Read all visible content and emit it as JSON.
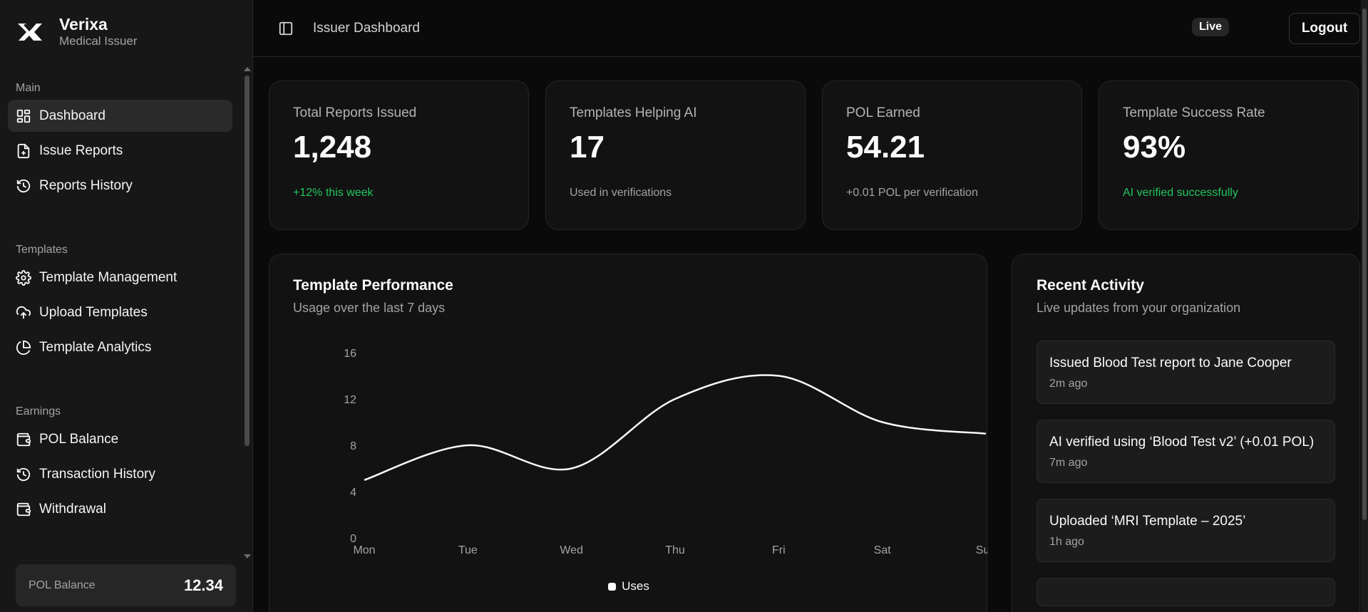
{
  "brand": {
    "name": "Verixa",
    "subtitle": "Medical Issuer"
  },
  "sidebar": {
    "groups": [
      {
        "label": "Main",
        "items": [
          {
            "label": "Dashboard",
            "icon": "layout-grid-icon",
            "active": true
          },
          {
            "label": "Issue Reports",
            "icon": "file-plus-icon"
          },
          {
            "label": "Reports History",
            "icon": "history-icon"
          }
        ]
      },
      {
        "label": "Templates",
        "items": [
          {
            "label": "Template Management",
            "icon": "gear-icon"
          },
          {
            "label": "Upload Templates",
            "icon": "cloud-upload-icon"
          },
          {
            "label": "Template Analytics",
            "icon": "pie-chart-icon"
          }
        ]
      },
      {
        "label": "Earnings",
        "items": [
          {
            "label": "POL Balance",
            "icon": "wallet-icon"
          },
          {
            "label": "Transaction History",
            "icon": "history-icon"
          },
          {
            "label": "Withdrawal",
            "icon": "wallet-icon"
          }
        ]
      }
    ],
    "balance": {
      "label": "POL Balance",
      "value": "12.34"
    }
  },
  "header": {
    "title": "Issuer Dashboard",
    "status": "Live",
    "logout": "Logout"
  },
  "stats": [
    {
      "label": "Total Reports Issued",
      "value": "1,248",
      "sub": "+12% this week",
      "sub_color": "#22c55e"
    },
    {
      "label": "Templates Helping AI",
      "value": "17",
      "sub": "Used in verifications"
    },
    {
      "label": "POL Earned",
      "value": "54.21",
      "sub": "+0.01 POL per verification"
    },
    {
      "label": "Template Success Rate",
      "value": "93%",
      "sub": "AI verified successfully",
      "sub_color": "#22c55e"
    }
  ],
  "performance": {
    "title": "Template Performance",
    "subtitle": "Usage over the last 7 days"
  },
  "chart_data": {
    "type": "line",
    "categories": [
      "Mon",
      "Tue",
      "Wed",
      "Thu",
      "Fri",
      "Sat",
      "Sun"
    ],
    "series": [
      {
        "name": "Uses",
        "values": [
          5,
          8,
          6,
          12,
          14,
          10,
          9
        ]
      }
    ],
    "yticks": [
      0,
      4,
      8,
      12,
      16
    ],
    "ylim": [
      0,
      16
    ],
    "grid": false,
    "legend": "bottom",
    "line_color": "#fafafa"
  },
  "activity": {
    "title": "Recent Activity",
    "subtitle": "Live updates from your organization",
    "items": [
      {
        "text": "Issued Blood Test report to Jane Cooper",
        "time": "2m ago"
      },
      {
        "text": "AI verified using ‘Blood Test v2’ (+0.01 POL)",
        "time": "7m ago"
      },
      {
        "text": "Uploaded ‘MRI Template – 2025’",
        "time": "1h ago"
      }
    ]
  }
}
